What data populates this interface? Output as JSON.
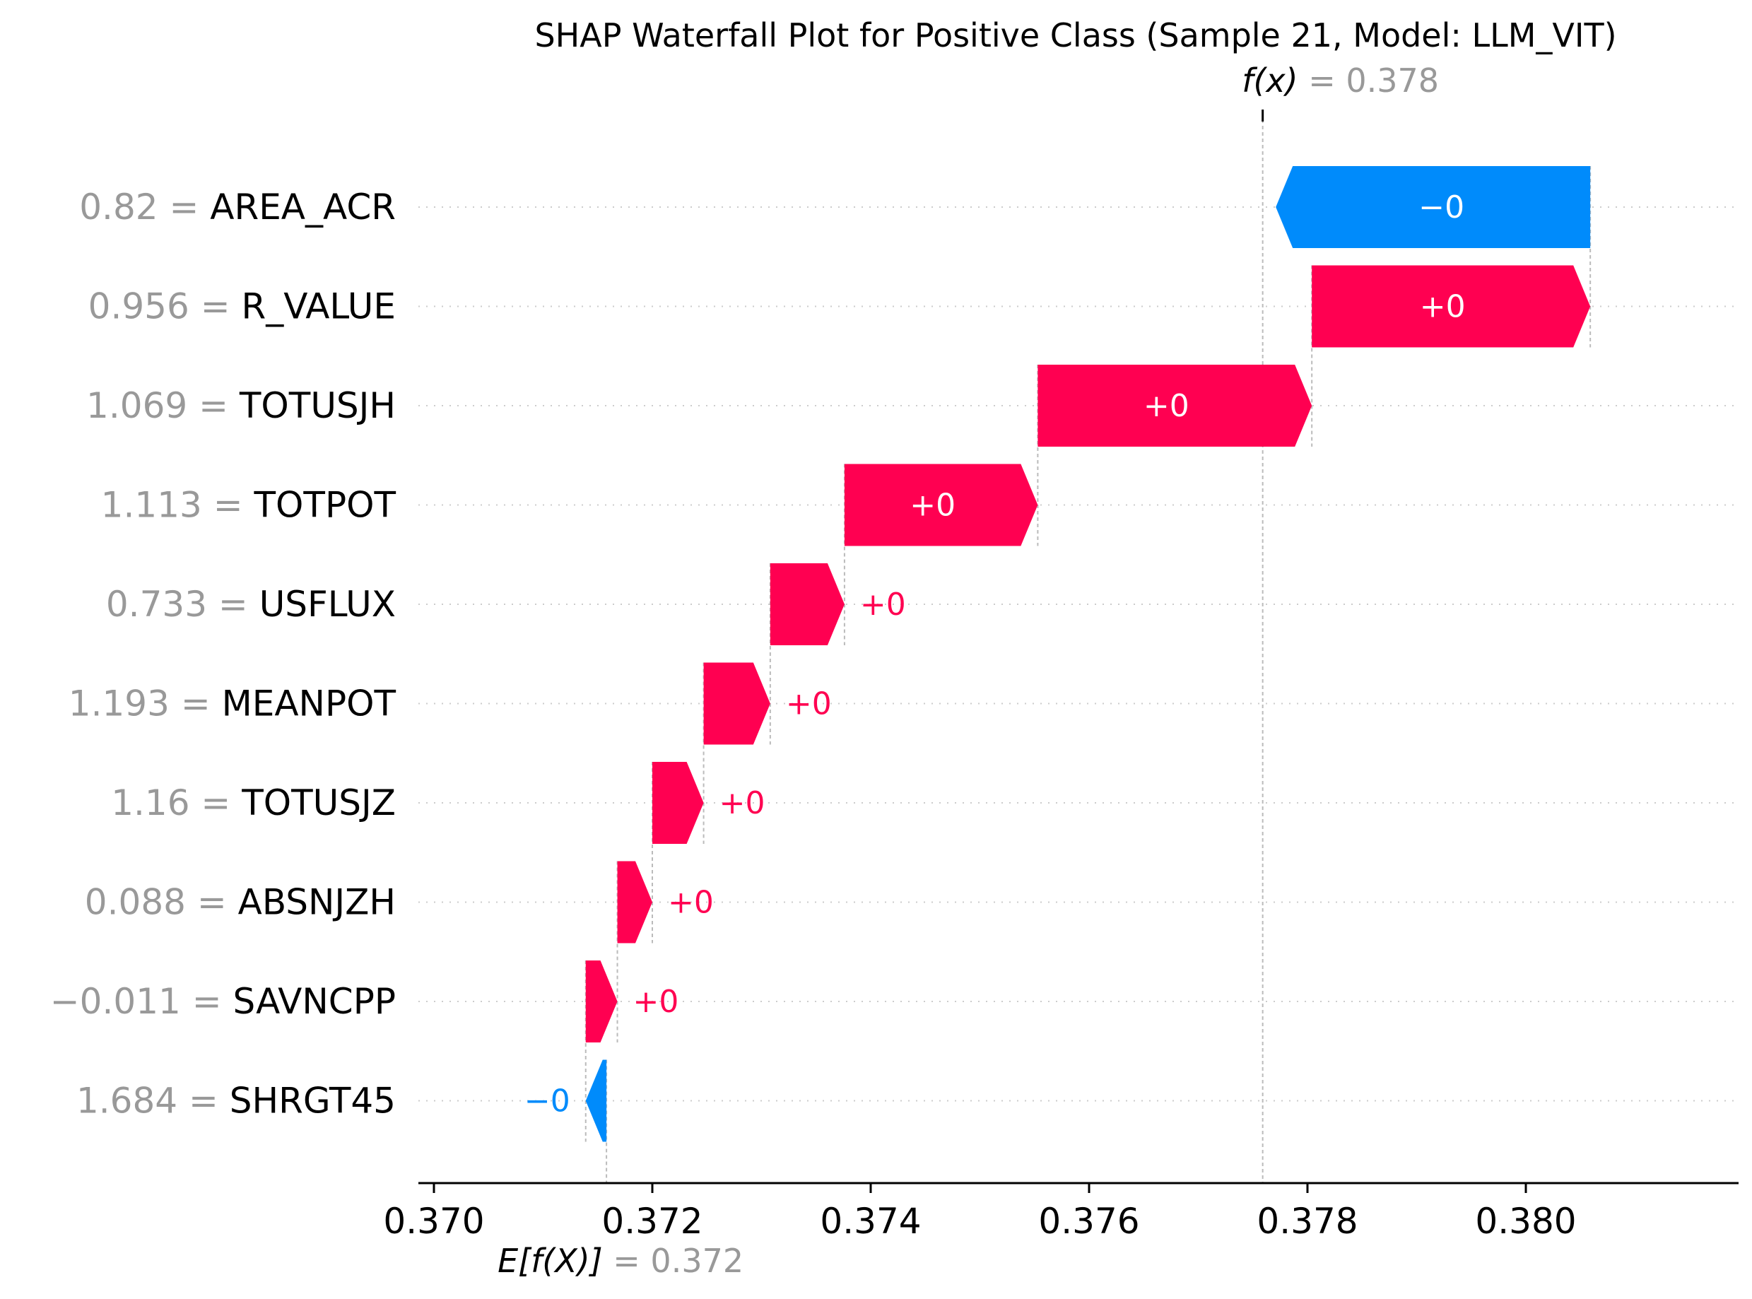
{
  "chart_data": {
    "type": "waterfall",
    "title": "SHAP Waterfall Plot for Positive Class (Sample 21, Model: LLM_VIT)",
    "fx_label": "f(x)",
    "fx_value": "0.378",
    "ex_label": "E[f(X)]",
    "ex_value": "0.372",
    "base_value": 0.37158,
    "final_value": 0.37759,
    "xlim": [
      0.36969,
      0.38198
    ],
    "xticks": [
      0.37,
      0.372,
      0.374,
      0.376,
      0.378,
      0.38
    ],
    "xtick_labels": [
      "0.370",
      "0.372",
      "0.374",
      "0.376",
      "0.378",
      "0.380"
    ],
    "grid": "horizontal-dotted",
    "features": [
      {
        "value": "0.82",
        "name": "AREA_ACR",
        "shap": -0.00288,
        "label": "−0"
      },
      {
        "value": "0.956",
        "name": "R_VALUE",
        "shap": 0.00255,
        "label": "+0"
      },
      {
        "value": "1.069",
        "name": "TOTUSJH",
        "shap": 0.00251,
        "label": "+0"
      },
      {
        "value": "1.113",
        "name": "TOTPOT",
        "shap": 0.00177,
        "label": "+0"
      },
      {
        "value": "0.733",
        "name": "USFLUX",
        "shap": 0.00068,
        "label": "+0"
      },
      {
        "value": "1.193",
        "name": "MEANPOT",
        "shap": 0.00061,
        "label": "+0"
      },
      {
        "value": "1.16",
        "name": "TOTUSJZ",
        "shap": 0.00047,
        "label": "+0"
      },
      {
        "value": "0.088",
        "name": "ABSNJZH",
        "shap": 0.00032,
        "label": "+0"
      },
      {
        "value": "−0.011",
        "name": "SAVNCPP",
        "shap": 0.00029,
        "label": "+0"
      },
      {
        "value": "1.684",
        "name": "SHRGT45",
        "shap": -0.00019,
        "label": "−0"
      }
    ],
    "colors": {
      "positive": "#ff0051",
      "negative": "#008bfb",
      "text": "#000000",
      "muted": "#999999",
      "grid": "#cccccc"
    }
  }
}
